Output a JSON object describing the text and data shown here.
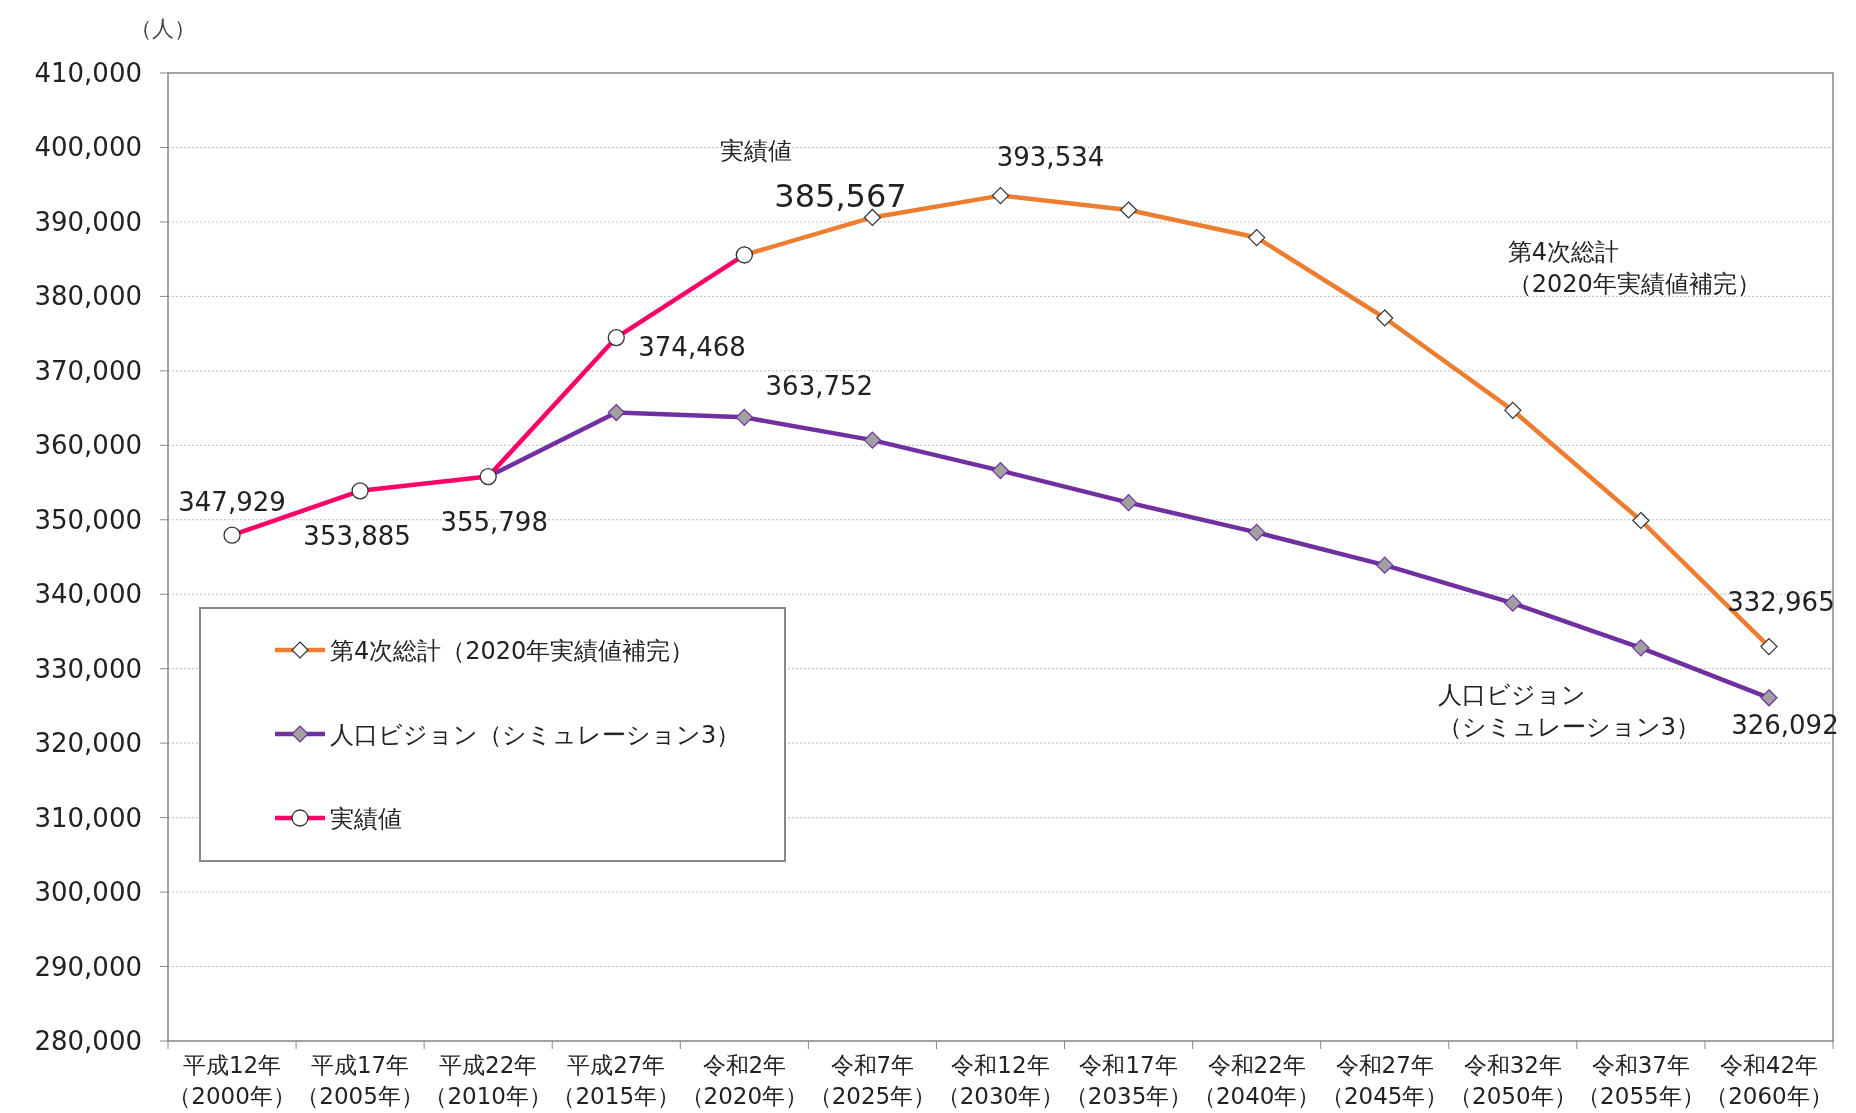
{
  "chart_data": {
    "type": "line",
    "ylabel": "（人）",
    "categories": [
      "平成12年（2000年）",
      "平成17年（2005年）",
      "平成22年（2010年）",
      "平成27年（2015年）",
      "令和2年（2020年）",
      "令和7年（2025年）",
      "令和12年（2030年）",
      "令和17年（2035年）",
      "令和22年（2040年）",
      "令和27年（2045年）",
      "令和32年（2050年）",
      "令和37年（2055年）",
      "令和42年（2060年）"
    ],
    "series": [
      {
        "name": "第4次総計（2020年実績値補完）",
        "color": "#ed7d31",
        "marker": "diamond",
        "values": [
          null,
          null,
          null,
          null,
          385567,
          390600,
          393534,
          391600,
          387900,
          377100,
          364700,
          349900,
          332965
        ],
        "value_labels": [
          null,
          null,
          null,
          null,
          null,
          null,
          "393,534",
          null,
          null,
          null,
          null,
          null,
          "332,965"
        ]
      },
      {
        "name": "人口ビジョン（シミュレーション3）",
        "color": "#7030a0",
        "marker": "diamond",
        "values": [
          null,
          null,
          355798,
          364400,
          363752,
          360700,
          356600,
          352300,
          348300,
          343900,
          338800,
          332800,
          326092
        ],
        "value_labels": [
          null,
          null,
          null,
          null,
          "363,752",
          null,
          null,
          null,
          null,
          null,
          null,
          null,
          "326,092"
        ]
      },
      {
        "name": "実績値",
        "color": "#ff0066",
        "marker": "circle",
        "values": [
          347929,
          353885,
          355798,
          374468,
          385567,
          null,
          null,
          null,
          null,
          null,
          null,
          null,
          null
        ],
        "value_labels": [
          "347,929",
          "353,885",
          "355,798",
          "374,468",
          "385,567",
          null,
          null,
          null,
          null,
          null,
          null,
          null,
          null
        ]
      }
    ],
    "ylim": [
      280000,
      410000
    ],
    "yticks": [
      {
        "value": 280000,
        "label": "280,000"
      },
      {
        "value": 290000,
        "label": "290,000"
      },
      {
        "value": 300000,
        "label": "300,000"
      },
      {
        "value": 310000,
        "label": "310,000"
      },
      {
        "value": 320000,
        "label": "320,000"
      },
      {
        "value": 330000,
        "label": "330,000"
      },
      {
        "value": 340000,
        "label": "340,000"
      },
      {
        "value": 350000,
        "label": "350,000"
      },
      {
        "value": 360000,
        "label": "360,000"
      },
      {
        "value": 370000,
        "label": "370,000"
      },
      {
        "value": 380000,
        "label": "380,000"
      },
      {
        "value": 390000,
        "label": "390,000"
      },
      {
        "value": 400000,
        "label": "400,000"
      },
      {
        "value": 410000,
        "label": "410,000"
      }
    ],
    "grid": "y",
    "legend": "left",
    "line_style": "solid",
    "annotations": [
      "実績値",
      "第4次総計（2020年実績値補完）",
      "人口ビジョン（シミュレーション3）"
    ]
  }
}
